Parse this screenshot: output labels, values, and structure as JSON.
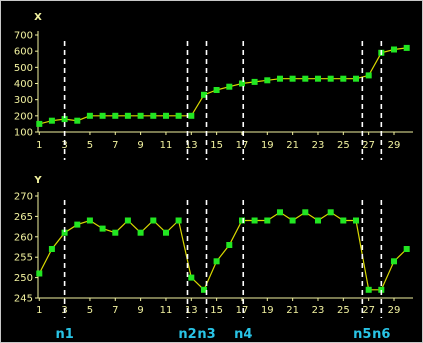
{
  "colors": {
    "background": "#000000",
    "axis": "#f2f2a0",
    "line": "#d9d900",
    "point": "#22e622",
    "marker_line": "#ffffff",
    "marker_label": "#29c4e6"
  },
  "chart_data": [
    {
      "type": "line",
      "ylabel": "X",
      "x": [
        1,
        2,
        3,
        4,
        5,
        6,
        7,
        8,
        9,
        10,
        11,
        12,
        13,
        14,
        15,
        16,
        17,
        18,
        19,
        20,
        21,
        22,
        23,
        24,
        25,
        26,
        27,
        28,
        29,
        30
      ],
      "x_ticks": [
        1,
        3,
        5,
        7,
        9,
        11,
        13,
        15,
        17,
        19,
        21,
        23,
        25,
        27,
        29
      ],
      "y_ticks": [
        100,
        200,
        300,
        400,
        500,
        600,
        700
      ],
      "ylim": [
        100,
        700
      ],
      "values": [
        150,
        170,
        180,
        170,
        200,
        200,
        200,
        200,
        200,
        200,
        200,
        200,
        200,
        330,
        360,
        380,
        400,
        410,
        420,
        430,
        430,
        430,
        430,
        430,
        430,
        430,
        450,
        590,
        610,
        620
      ]
    },
    {
      "type": "line",
      "ylabel": "Y",
      "x": [
        1,
        2,
        3,
        4,
        5,
        6,
        7,
        8,
        9,
        10,
        11,
        12,
        13,
        14,
        15,
        16,
        17,
        18,
        19,
        20,
        21,
        22,
        23,
        24,
        25,
        26,
        27,
        28,
        29,
        30
      ],
      "x_ticks": [
        1,
        3,
        5,
        7,
        9,
        11,
        13,
        15,
        17,
        19,
        21,
        23,
        25,
        27,
        29
      ],
      "y_ticks": [
        245,
        250,
        255,
        260,
        265,
        270
      ],
      "ylim": [
        245,
        270
      ],
      "values": [
        251,
        257,
        261,
        263,
        264,
        262,
        261,
        264,
        261,
        264,
        261,
        264,
        250,
        247,
        254,
        258,
        264,
        264,
        264,
        266,
        264,
        266,
        264,
        266,
        264,
        264,
        247,
        247,
        254,
        257
      ]
    }
  ],
  "markers": [
    {
      "label": "n1",
      "x": 3.0
    },
    {
      "label": "n2",
      "x": 12.7
    },
    {
      "label": "n3",
      "x": 14.2
    },
    {
      "label": "n4",
      "x": 17.1
    },
    {
      "label": "n5",
      "x": 26.5
    },
    {
      "label": "n6",
      "x": 28.0
    }
  ]
}
